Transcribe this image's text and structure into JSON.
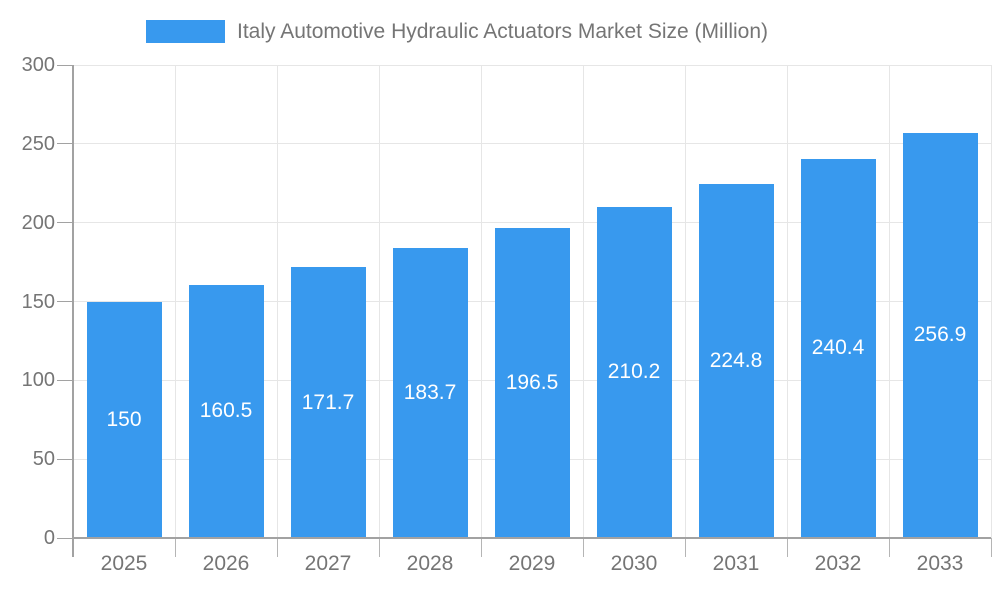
{
  "legend": {
    "label": "Italy Automotive Hydraulic Actuators Market Size (Million)"
  },
  "chart_data": {
    "type": "bar",
    "title": "Italy Automotive Hydraulic Actuators Market Size (Million)",
    "categories": [
      "2025",
      "2026",
      "2027",
      "2028",
      "2029",
      "2030",
      "2031",
      "2032",
      "2033"
    ],
    "values": [
      150,
      160.5,
      171.7,
      183.7,
      196.5,
      210.2,
      224.8,
      240.4,
      256.9
    ],
    "value_labels": [
      "150",
      "160.5",
      "171.7",
      "183.7",
      "196.5",
      "210.2",
      "224.8",
      "240.4",
      "256.9"
    ],
    "xlabel": "",
    "ylabel": "",
    "ylim": [
      0,
      300
    ],
    "yticks": [
      0,
      50,
      100,
      150,
      200,
      250,
      300
    ],
    "grid": true,
    "legend_position": "top",
    "bar_label_position": "center-inside",
    "colors": {
      "bar": "#3899EE",
      "grid_line": "#e6e6e6",
      "axis_line": "#a2a2a2",
      "tick_line": "#b5b5b5",
      "tick_text": "#757575",
      "bar_label_text": "#ffffff",
      "legend_text": "#757575",
      "background": "#ffffff"
    }
  }
}
